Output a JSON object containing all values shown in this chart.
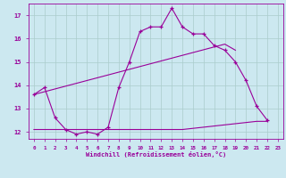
{
  "xlabel": "Windchill (Refroidissement éolien,°C)",
  "x_hours": [
    0,
    1,
    2,
    3,
    4,
    5,
    6,
    7,
    8,
    9,
    10,
    11,
    12,
    13,
    14,
    15,
    16,
    17,
    18,
    19,
    20,
    21,
    22,
    23
  ],
  "curve_main": [
    13.6,
    13.9,
    12.6,
    12.1,
    11.9,
    12.0,
    11.9,
    12.2,
    13.9,
    15.0,
    16.3,
    16.5,
    16.5,
    17.3,
    16.5,
    16.2,
    16.2,
    15.7,
    15.5,
    15.0,
    14.2,
    13.1,
    12.5,
    null
  ],
  "curve_line1": [
    13.6,
    13.72,
    13.84,
    13.96,
    14.08,
    14.2,
    14.32,
    14.44,
    14.56,
    14.68,
    14.8,
    14.92,
    15.04,
    15.16,
    15.28,
    15.4,
    15.52,
    15.64,
    15.76,
    15.5,
    null,
    null,
    null,
    null
  ],
  "curve_line2": [
    12.1,
    12.1,
    12.1,
    12.1,
    12.1,
    12.1,
    12.1,
    12.1,
    12.1,
    12.1,
    12.1,
    12.1,
    12.1,
    12.1,
    12.1,
    12.15,
    12.2,
    12.25,
    12.3,
    12.35,
    12.4,
    12.45,
    12.45,
    null
  ],
  "ylim": [
    11.7,
    17.5
  ],
  "yticks": [
    12,
    13,
    14,
    15,
    16,
    17
  ],
  "xticks": [
    0,
    1,
    2,
    3,
    4,
    5,
    6,
    7,
    8,
    9,
    10,
    11,
    12,
    13,
    14,
    15,
    16,
    17,
    18,
    19,
    20,
    21,
    22,
    23
  ],
  "line_color": "#990099",
  "bg_color": "#cce8f0",
  "grid_color": "#aacccc"
}
